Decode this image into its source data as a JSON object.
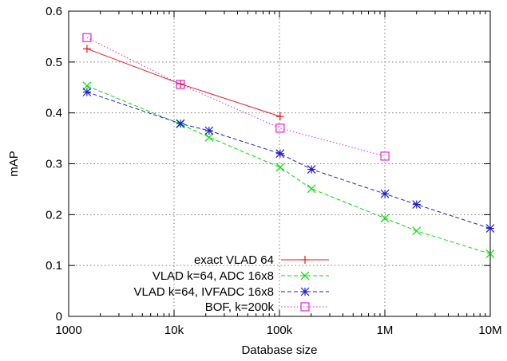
{
  "chart_data": {
    "type": "line",
    "xlabel": "Database size",
    "ylabel": "mAP",
    "xscale": "log",
    "xlim": [
      1000,
      10000000
    ],
    "ylim": [
      0,
      0.6
    ],
    "grid": true,
    "legend_position": "bottom-center",
    "x_ticks": [
      {
        "value": 1000,
        "label": "1000"
      },
      {
        "value": 10000,
        "label": "10k"
      },
      {
        "value": 100000,
        "label": "100k"
      },
      {
        "value": 1000000,
        "label": "1M"
      },
      {
        "value": 10000000,
        "label": "10M"
      }
    ],
    "y_ticks": [
      {
        "value": 0,
        "label": "0"
      },
      {
        "value": 0.1,
        "label": "0.1"
      },
      {
        "value": 0.2,
        "label": "0.2"
      },
      {
        "value": 0.3,
        "label": "0.3"
      },
      {
        "value": 0.4,
        "label": "0.4"
      },
      {
        "value": 0.5,
        "label": "0.5"
      },
      {
        "value": 0.6,
        "label": "0.6"
      }
    ],
    "series": [
      {
        "name": "exact VLAD 64",
        "color": "#e41a1c",
        "marker": "plus",
        "dash": "solid",
        "x": [
          1491,
          11491,
          101491
        ],
        "y": [
          0.526,
          0.457,
          0.393
        ]
      },
      {
        "name": "VLAD k=64, ADC 16x8",
        "color": "#00dd00",
        "marker": "cross",
        "dash": "dashed",
        "x": [
          1491,
          11491,
          21491,
          101491,
          201491,
          1001491,
          2001491,
          10001491
        ],
        "y": [
          0.453,
          0.378,
          0.352,
          0.293,
          0.251,
          0.193,
          0.168,
          0.123
        ]
      },
      {
        "name": "VLAD k=64, IVFADC 16x8",
        "color": "#1e1ecc",
        "marker": "star",
        "dash": "dashed",
        "x": [
          1491,
          11491,
          21491,
          101491,
          201491,
          1001491,
          2001491,
          10001491
        ],
        "y": [
          0.441,
          0.379,
          0.365,
          0.32,
          0.289,
          0.241,
          0.22,
          0.173
        ]
      },
      {
        "name": "BOF, k=200k",
        "color": "#dd22dd",
        "marker": "square",
        "dash": "dotted",
        "x": [
          1491,
          11491,
          101491,
          1001491
        ],
        "y": [
          0.548,
          0.456,
          0.37,
          0.315
        ]
      }
    ]
  }
}
